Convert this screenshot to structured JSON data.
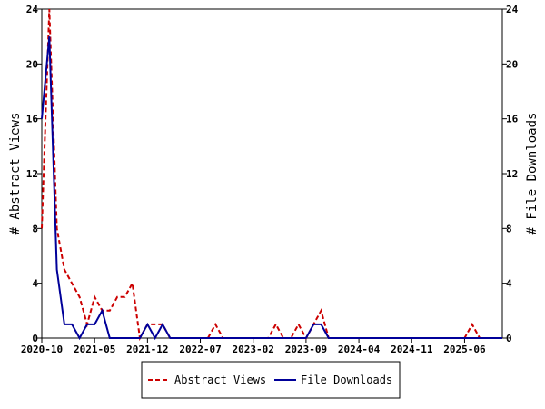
{
  "chart_data": {
    "type": "line",
    "title": "",
    "xlabel": "",
    "ylabel_left": "# Abstract Views",
    "ylabel_right": "# File Downloads",
    "ylim": [
      0,
      24
    ],
    "y_ticks": [
      0,
      4,
      8,
      12,
      16,
      20,
      24
    ],
    "x_tick_labels": [
      "2020-10",
      "2021-05",
      "2021-12",
      "2022-07",
      "2023-02",
      "2023-09",
      "2024-04",
      "2024-11",
      "2025-06"
    ],
    "x_tick_start_index": 0,
    "x_tick_step": 7,
    "grid": false,
    "legend_position": "bottom",
    "series": [
      {
        "name": "Abstract Views",
        "axis": "left",
        "color": "#cc0000",
        "style": "dashed",
        "values": [
          8,
          24,
          8,
          5,
          4,
          3,
          1,
          3,
          2,
          2,
          3,
          3,
          4,
          0,
          1,
          1,
          1,
          0,
          0,
          0,
          0,
          0,
          0,
          1,
          0,
          0,
          0,
          0,
          0,
          0,
          0,
          1,
          0,
          0,
          1,
          0,
          1,
          2,
          0,
          0,
          0,
          0,
          0,
          0,
          0,
          0,
          0,
          0,
          0,
          0,
          0,
          0,
          0,
          0,
          0,
          0,
          0,
          1,
          0,
          0,
          0,
          0
        ]
      },
      {
        "name": "File Downloads",
        "axis": "right",
        "color": "#000099",
        "style": "solid",
        "values": [
          16,
          22,
          5,
          1,
          1,
          0,
          1,
          1,
          2,
          0,
          0,
          0,
          0,
          0,
          1,
          0,
          1,
          0,
          0,
          0,
          0,
          0,
          0,
          0,
          0,
          0,
          0,
          0,
          0,
          0,
          0,
          0,
          0,
          0,
          0,
          0,
          1,
          1,
          0,
          0,
          0,
          0,
          0,
          0,
          0,
          0,
          0,
          0,
          0,
          0,
          0,
          0,
          0,
          0,
          0,
          0,
          0,
          0,
          0,
          0,
          0,
          0
        ]
      }
    ]
  }
}
